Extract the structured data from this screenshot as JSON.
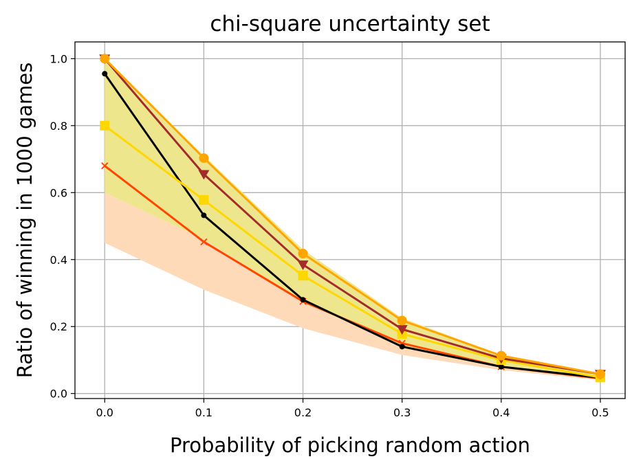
{
  "chart_data": {
    "type": "line",
    "title": "chi-square uncertainty set",
    "xlabel": "Probability of picking random action",
    "ylabel": "Ratio of winning in 1000 games",
    "xlim": [
      -0.03,
      0.525
    ],
    "ylim": [
      -0.015,
      1.05
    ],
    "x_ticks": [
      0.0,
      0.1,
      0.2,
      0.3,
      0.4,
      0.5
    ],
    "x_tick_labels": [
      "0.0",
      "0.1",
      "0.2",
      "0.3",
      "0.4",
      "0.5"
    ],
    "y_ticks": [
      0.0,
      0.2,
      0.4,
      0.6,
      0.8,
      1.0
    ],
    "y_tick_labels": [
      "0.0",
      "0.2",
      "0.4",
      "0.6",
      "0.8",
      "1.0"
    ],
    "grid": true,
    "x": [
      0.0,
      0.1,
      0.2,
      0.3,
      0.4,
      0.5
    ],
    "bands": [
      {
        "color": "#ffdab9",
        "lower": [
          0.45,
          0.31,
          0.195,
          0.115,
          0.07,
          0.04
        ],
        "upper": [
          0.6,
          0.46,
          0.285,
          0.16,
          0.09,
          0.05
        ]
      },
      {
        "color": "#eee68c",
        "lower": [
          0.6,
          0.46,
          0.275,
          0.14,
          0.08,
          0.045
        ],
        "upper": [
          1.0,
          0.71,
          0.43,
          0.225,
          0.115,
          0.06
        ]
      }
    ],
    "series": [
      {
        "color": "#ff4500",
        "marker": "x",
        "values": [
          0.68,
          0.453,
          0.275,
          0.15,
          0.08,
          0.045
        ]
      },
      {
        "color": "#000000",
        "marker": "dot",
        "values": [
          0.955,
          0.532,
          0.28,
          0.14,
          0.08,
          0.047
        ]
      },
      {
        "color": "#ffd700",
        "marker": "square",
        "values": [
          0.8,
          0.578,
          0.352,
          0.178,
          0.1,
          0.048
        ]
      },
      {
        "color": "#a52a2a",
        "marker": "triangle-down",
        "values": [
          1.0,
          0.655,
          0.385,
          0.192,
          0.105,
          0.058
        ]
      },
      {
        "color": "#ffa500",
        "marker": "circle",
        "values": [
          1.0,
          0.703,
          0.418,
          0.218,
          0.113,
          0.058
        ]
      }
    ]
  }
}
